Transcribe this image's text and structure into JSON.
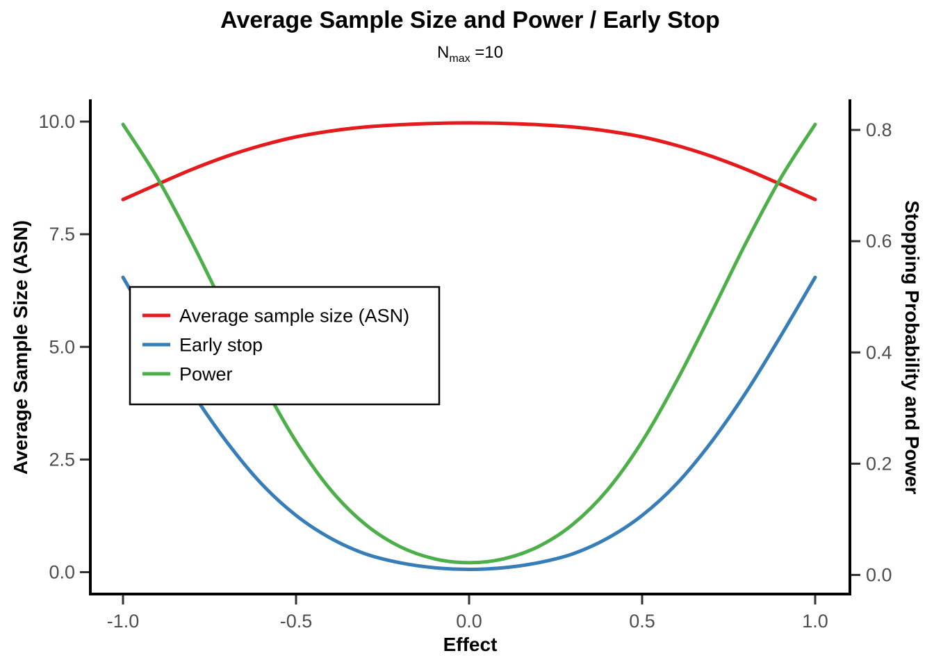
{
  "header": {
    "title": "Average Sample Size and Power / Early Stop",
    "subtitle_base": "N",
    "subtitle_sub": "max",
    "subtitle_rest": " =10"
  },
  "chart_data": {
    "type": "line",
    "title": "Average Sample Size and Power / Early Stop",
    "subtitle": "Nmax =10",
    "grid": false,
    "background": "#ffffff",
    "x": [
      -1.0,
      -0.9,
      -0.8,
      -0.7,
      -0.6,
      -0.5,
      -0.4,
      -0.3,
      -0.2,
      -0.1,
      0.0,
      0.1,
      0.2,
      0.3,
      0.4,
      0.5,
      0.6,
      0.7,
      0.8,
      0.9,
      1.0
    ],
    "series": [
      {
        "name": "Average sample size (ASN)",
        "axis": "left",
        "color": "#E41A1C",
        "values": [
          8.27,
          8.61,
          8.94,
          9.23,
          9.47,
          9.66,
          9.79,
          9.88,
          9.93,
          9.96,
          9.97,
          9.96,
          9.93,
          9.88,
          9.79,
          9.66,
          9.47,
          9.23,
          8.94,
          8.61,
          8.27
        ]
      },
      {
        "name": "Early stop",
        "axis": "right",
        "color": "#377EB8",
        "values": [
          0.535,
          0.429,
          0.328,
          0.239,
          0.164,
          0.107,
          0.066,
          0.038,
          0.022,
          0.013,
          0.01,
          0.013,
          0.022,
          0.038,
          0.066,
          0.107,
          0.164,
          0.239,
          0.328,
          0.429,
          0.535
        ]
      },
      {
        "name": "Power",
        "axis": "right",
        "color": "#4DAF4A",
        "values": [
          0.81,
          0.713,
          0.597,
          0.471,
          0.349,
          0.24,
          0.153,
          0.091,
          0.051,
          0.029,
          0.022,
          0.029,
          0.051,
          0.091,
          0.153,
          0.24,
          0.349,
          0.471,
          0.597,
          0.713,
          0.81
        ]
      }
    ],
    "axes": {
      "x": {
        "label": "Effect",
        "range": [
          -1.1,
          1.1
        ],
        "ticks": [
          -1.0,
          -0.5,
          0.0,
          0.5,
          1.0
        ],
        "tick_labels": [
          "-1.0",
          "-0.5",
          "0.0",
          "0.5",
          "1.0"
        ]
      },
      "left": {
        "label": "Average Sample Size (ASN)",
        "range": [
          -0.5,
          10.5
        ],
        "ticks": [
          0,
          2.5,
          5,
          7.5,
          10
        ],
        "tick_labels": [
          "0.0",
          "2.5",
          "5.0",
          "7.5",
          "10.0"
        ]
      },
      "right": {
        "label": "Stopping Probability and Power",
        "range": [
          -0.005,
          0.85
        ],
        "ticks": [
          0,
          0.2,
          0.4,
          0.6,
          0.8
        ],
        "tick_labels": [
          "0.0",
          "0.2",
          "0.4",
          "0.6",
          "0.8"
        ]
      }
    },
    "legend": {
      "position": "middle-left",
      "entries": [
        "Average sample size (ASN)",
        "Early stop",
        "Power"
      ]
    },
    "colors": {
      "tick_label": "#4d4d4d",
      "axis_line": "#000000",
      "legend_border": "#000000",
      "legend_fill": "#ffffff"
    }
  }
}
